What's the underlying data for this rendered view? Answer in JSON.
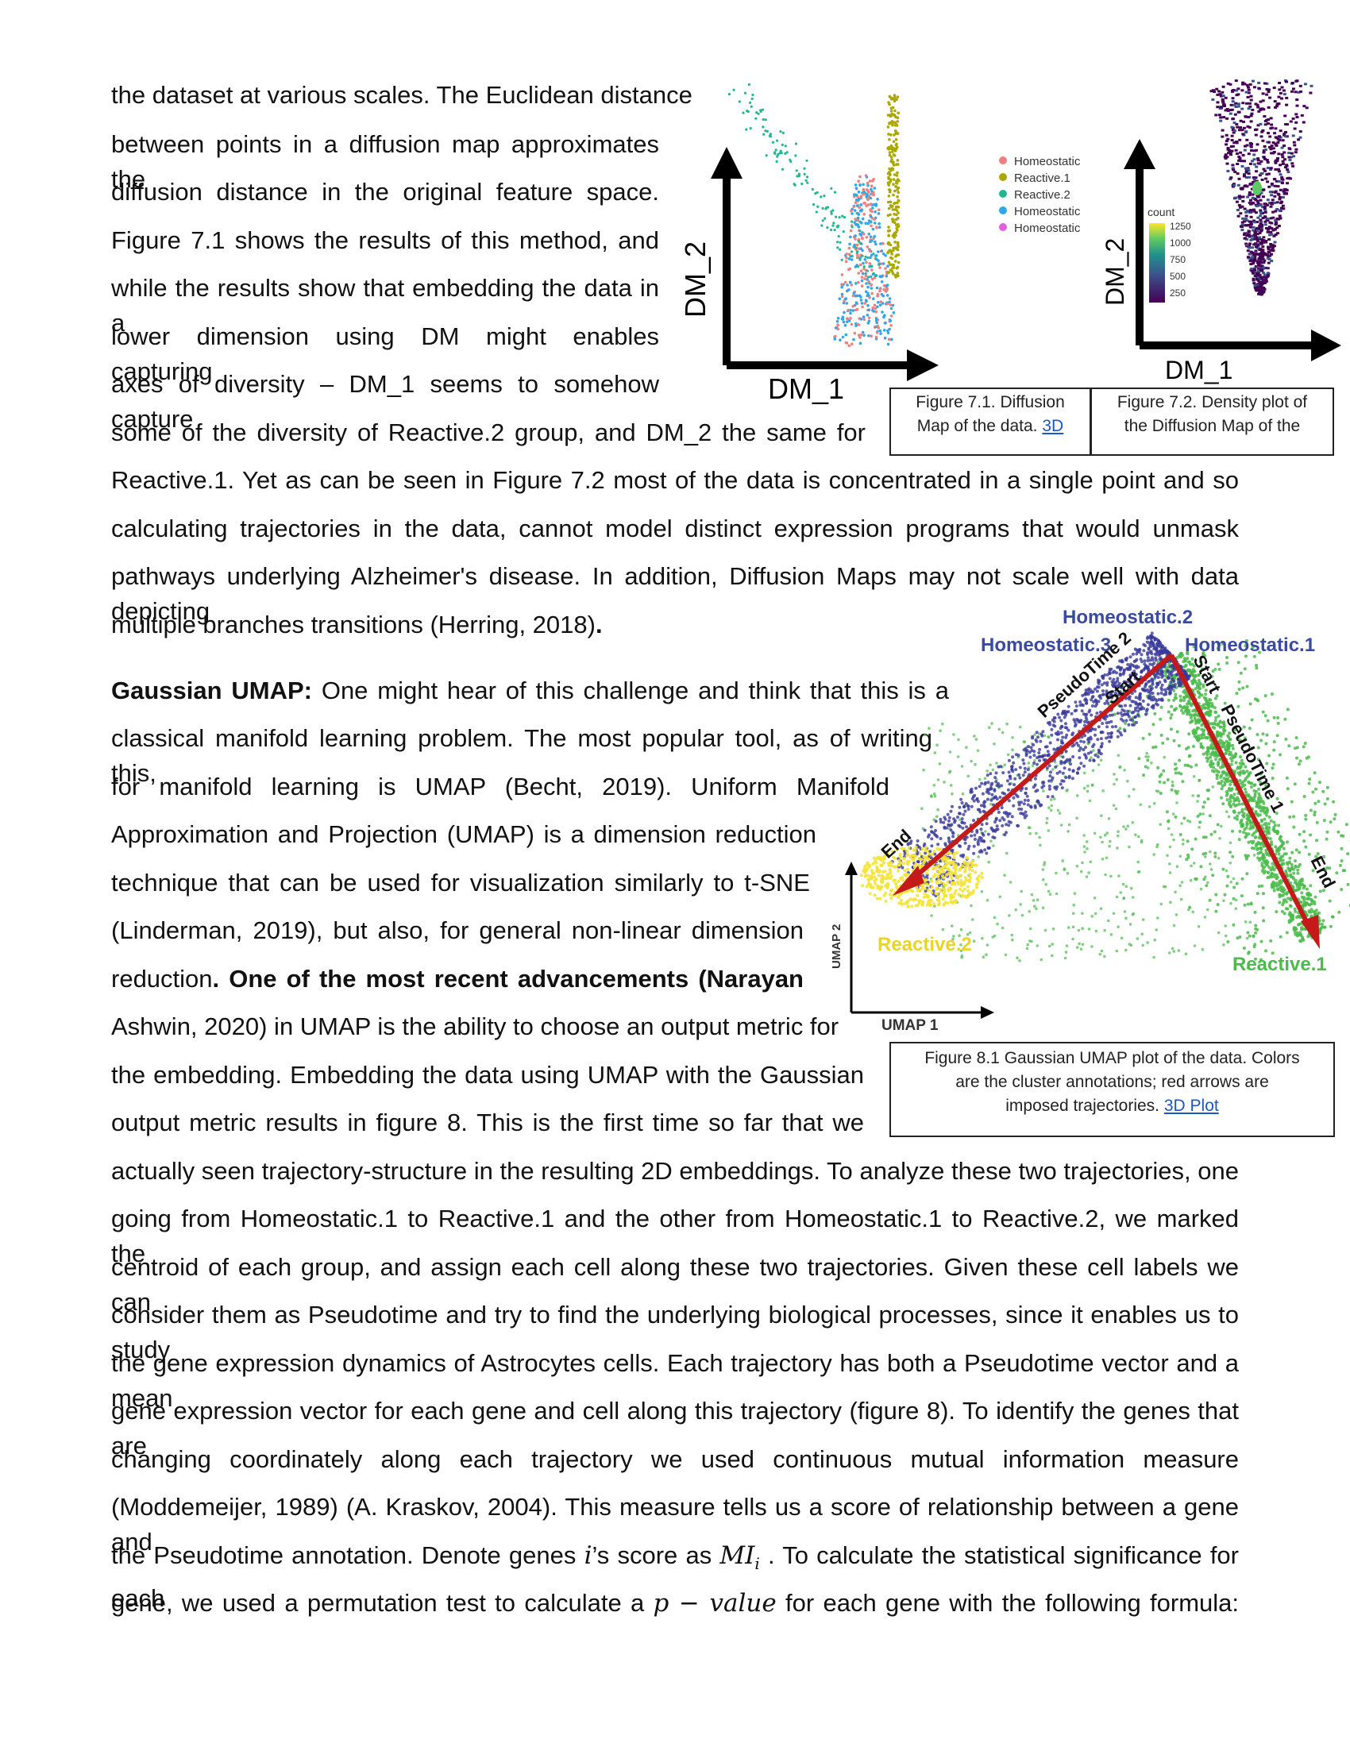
{
  "lines": [
    "the dataset at various scales. The Euclidean distance",
    "between points in a diffusion map approximates the",
    "diffusion distance in the original feature space.",
    "Figure 7.1 shows the results of this method, and",
    "while the results show that embedding the data in a",
    "lower dimension using DM might enables capturing",
    "axes of diversity – DM_1 seems to somehow capture",
    "some of the diversity of Reactive.2 group, and DM_2 the same for",
    "Reactive.1. Yet as can be seen in Figure 7.2 most of the data is concentrated in a single point and so",
    "calculating trajectories in the data, cannot model distinct expression programs that would unmask",
    "pathways underlying Alzheimer's disease. In addition, Diffusion Maps may not scale well with data depicting",
    "multiple branches transitions (Herring, 2018)",
    ".",
    "Gaussian UMAP:",
    " One might hear of this challenge and think that this is a",
    "classical manifold learning problem. The most popular tool, as of writing this,",
    "for manifold learning is UMAP (Becht, 2019). Uniform Manifold",
    "Approximation and Projection (UMAP) is a dimension reduction",
    "technique that can be used for visualization similarly to t-SNE",
    "(Linderman, 2019), but also, for general non-linear dimension",
    "reduction",
    ". One of the most recent advancements (Narayan",
    "Ashwin, 2020) in UMAP is the ability to choose an output metric for",
    "the embedding. Embedding the data using UMAP with the Gaussian",
    "output metric results in figure 8. This is the first time so far that we",
    "actually seen trajectory-structure in the resulting 2D embeddings. To analyze these two trajectories, one",
    "going from Homeostatic.1 to Reactive.1 and the other from Homeostatic.1 to Reactive.2, we marked the",
    "centroid of each group, and assign each cell along these two trajectories. Given these cell labels we can",
    "consider them as Pseudotime and try to find the underlying biological processes, since it enables us to study",
    "the gene expression dynamics of Astrocytes cells. Each trajectory has both a Pseudotime vector and a mean",
    "gene expression vector for each gene and cell along this trajectory (figure 8). To identify the genes that are",
    "changing coordinately along each trajectory we used continuous mutual information measure",
    "(Moddemeijer, 1989) (A. Kraskov, 2004). This measure tells us a score of relationship between a gene and",
    "the Pseudotime annotation. Denote genes ",
    "i",
    "’s score as ",
    "MI",
    "i",
    " . To calculate the statistical significance for each",
    "gene, we used a permutation test to calculate a ",
    "p − value",
    " for each gene with the following formula:"
  ],
  "fig71": {
    "ylabel": "DM_2",
    "xlabel": "DM_1",
    "legend": [
      "Homeostatic",
      "Reactive.1",
      "Reactive.2",
      "Homeostatic",
      "Homeostatic"
    ],
    "legend_colors": [
      "#f08080",
      "#a8a800",
      "#20b890",
      "#30a8e8",
      "#e060e0"
    ],
    "caption_line1": "Figure 7.1. Diffusion",
    "caption_line2": "Map of the data.",
    "caption_link": "3D"
  },
  "fig72": {
    "ylabel": "DM_2",
    "xlabel": "DM_1",
    "count_title": "count",
    "count_ticks": [
      "1250",
      "1000",
      "750",
      "500",
      "250"
    ],
    "caption_line1": "Figure 7.2. Density plot of",
    "caption_line2": "the Diffusion Map of the"
  },
  "fig81": {
    "labels": {
      "homeostatic2": "Homeostatic.2",
      "homeostatic3": "Homeostatic.3",
      "homeostatic1": "Homeostatic.1",
      "reactive2": "Reactive.2",
      "reactive1": "Reactive.1",
      "pseudo2": "PseudoTime 2",
      "pseudo1": "PseudoTime 1",
      "start_left": "Start",
      "start_right": "Start",
      "end_left": "End",
      "end_right": "End",
      "xaxis": "UMAP 1",
      "yaxis": "UMAP 2"
    },
    "caption_line1": "Figure 8.1 Gaussian UMAP plot of the data. Colors",
    "caption_line2": "are the cluster annotations; red arrows are",
    "caption_line3": "imposed trajectories.",
    "caption_link": "3D Plot"
  },
  "colors": {
    "homeostatic": "#3a3a9a",
    "reactive1": "#4cbb4c",
    "reactive2": "#f5e33a",
    "arrow": "#c41a1a",
    "link": "#1a56c4"
  }
}
